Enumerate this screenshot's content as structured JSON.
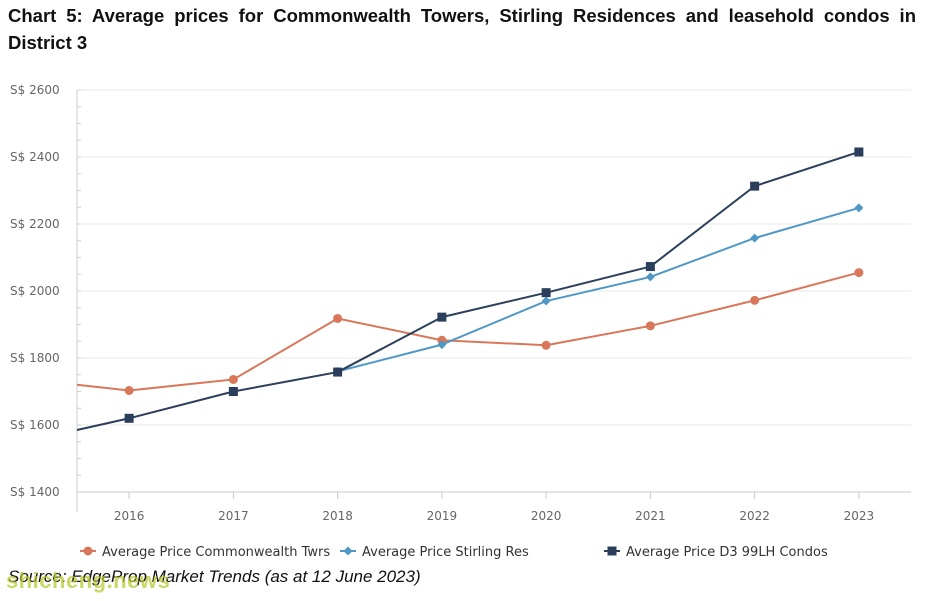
{
  "title": "Chart 5: Average prices for Commonwealth Towers, Stirling Residences and leasehold condos in District 3",
  "source": "Source: EdgeProp Market Trends (as at 12 June 2023)",
  "watermark": "shicheng.news",
  "chart_data": {
    "type": "line",
    "x": [
      2016,
      2017,
      2018,
      2019,
      2020,
      2021,
      2022,
      2023
    ],
    "xlim": [
      2015.5,
      2023.5
    ],
    "ylim": [
      1400,
      2600
    ],
    "yticks": [
      1400,
      1600,
      1800,
      2000,
      2200,
      2400,
      2600
    ],
    "ytick_labels": [
      "S$ 1400",
      "S$ 1600",
      "S$ 1800",
      "S$ 2000",
      "S$ 2200",
      "S$ 2400",
      "S$ 2600"
    ],
    "grid": true,
    "legend": "bottom",
    "series": [
      {
        "name": "Average Price Commonwealth Twrs",
        "color": "#d9775a",
        "marker": "circle",
        "lead_in": 1720,
        "values": [
          1703,
          1736,
          1918,
          1853,
          1838,
          1896,
          1972,
          2055
        ]
      },
      {
        "name": "Average Price Stirling Res",
        "color": "#4f98c6",
        "marker": "diamond",
        "values": [
          null,
          null,
          1760,
          1840,
          1970,
          2042,
          2158,
          2248
        ]
      },
      {
        "name": "Average Price D3 99LH Condos",
        "color": "#2b3f5c",
        "marker": "square",
        "lead_in": 1585,
        "values": [
          1620,
          1700,
          1758,
          1922,
          1995,
          2073,
          2313,
          2415
        ]
      }
    ]
  }
}
